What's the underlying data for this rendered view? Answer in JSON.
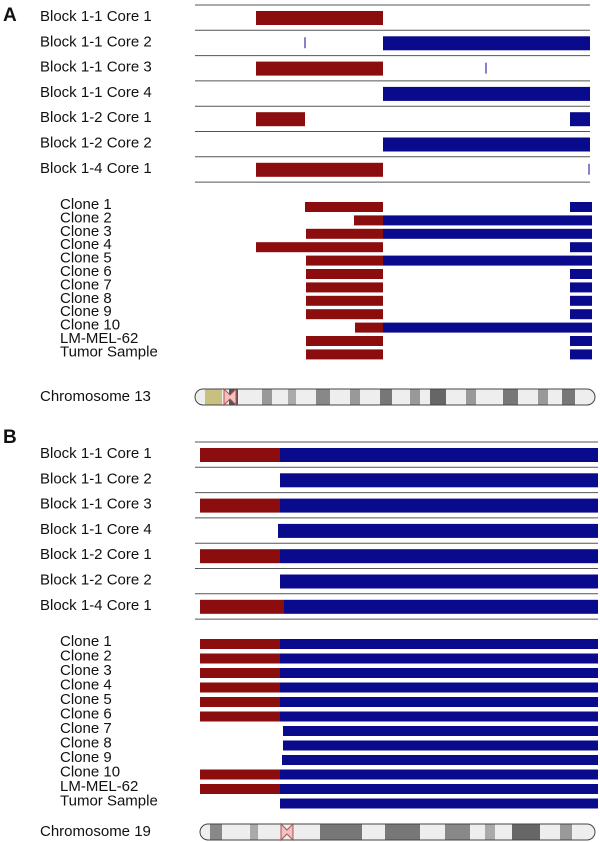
{
  "panels": [
    {
      "letter": "A",
      "samples": [
        "Block 1-1 Core 1",
        "Block 1-1 Core 2",
        "Block 1-1 Core 3",
        "Block 1-1 Core 4",
        "Block 1-2 Core 1",
        "Block 1-2 Core 2",
        "Block 1-4 Core 1"
      ],
      "clones": [
        "Clone 1",
        "Clone 2",
        "Clone 3",
        "Clone 4",
        "Clone 5",
        "Clone 6",
        "Clone 7",
        "Clone 8",
        "Clone 9",
        "Clone 10",
        "LM-MEL-62",
        "Tumor Sample"
      ],
      "chromosome": "Chromosome 13"
    },
    {
      "letter": "B",
      "samples": [
        "Block 1-1 Core 1",
        "Block 1-1 Core 2",
        "Block 1-1 Core 3",
        "Block 1-1 Core 4",
        "Block 1-2 Core 1",
        "Block 1-2 Core 2",
        "Block 1-4 Core 1"
      ],
      "clones": [
        "Clone 1",
        "Clone 2",
        "Clone 3",
        "Clone 4",
        "Clone 5",
        "Clone 6",
        "Clone 7",
        "Clone 8",
        "Clone 9",
        "Clone 10",
        "LM-MEL-62",
        "Tumor Sample"
      ],
      "chromosome": "Chromosome 19"
    }
  ]
}
